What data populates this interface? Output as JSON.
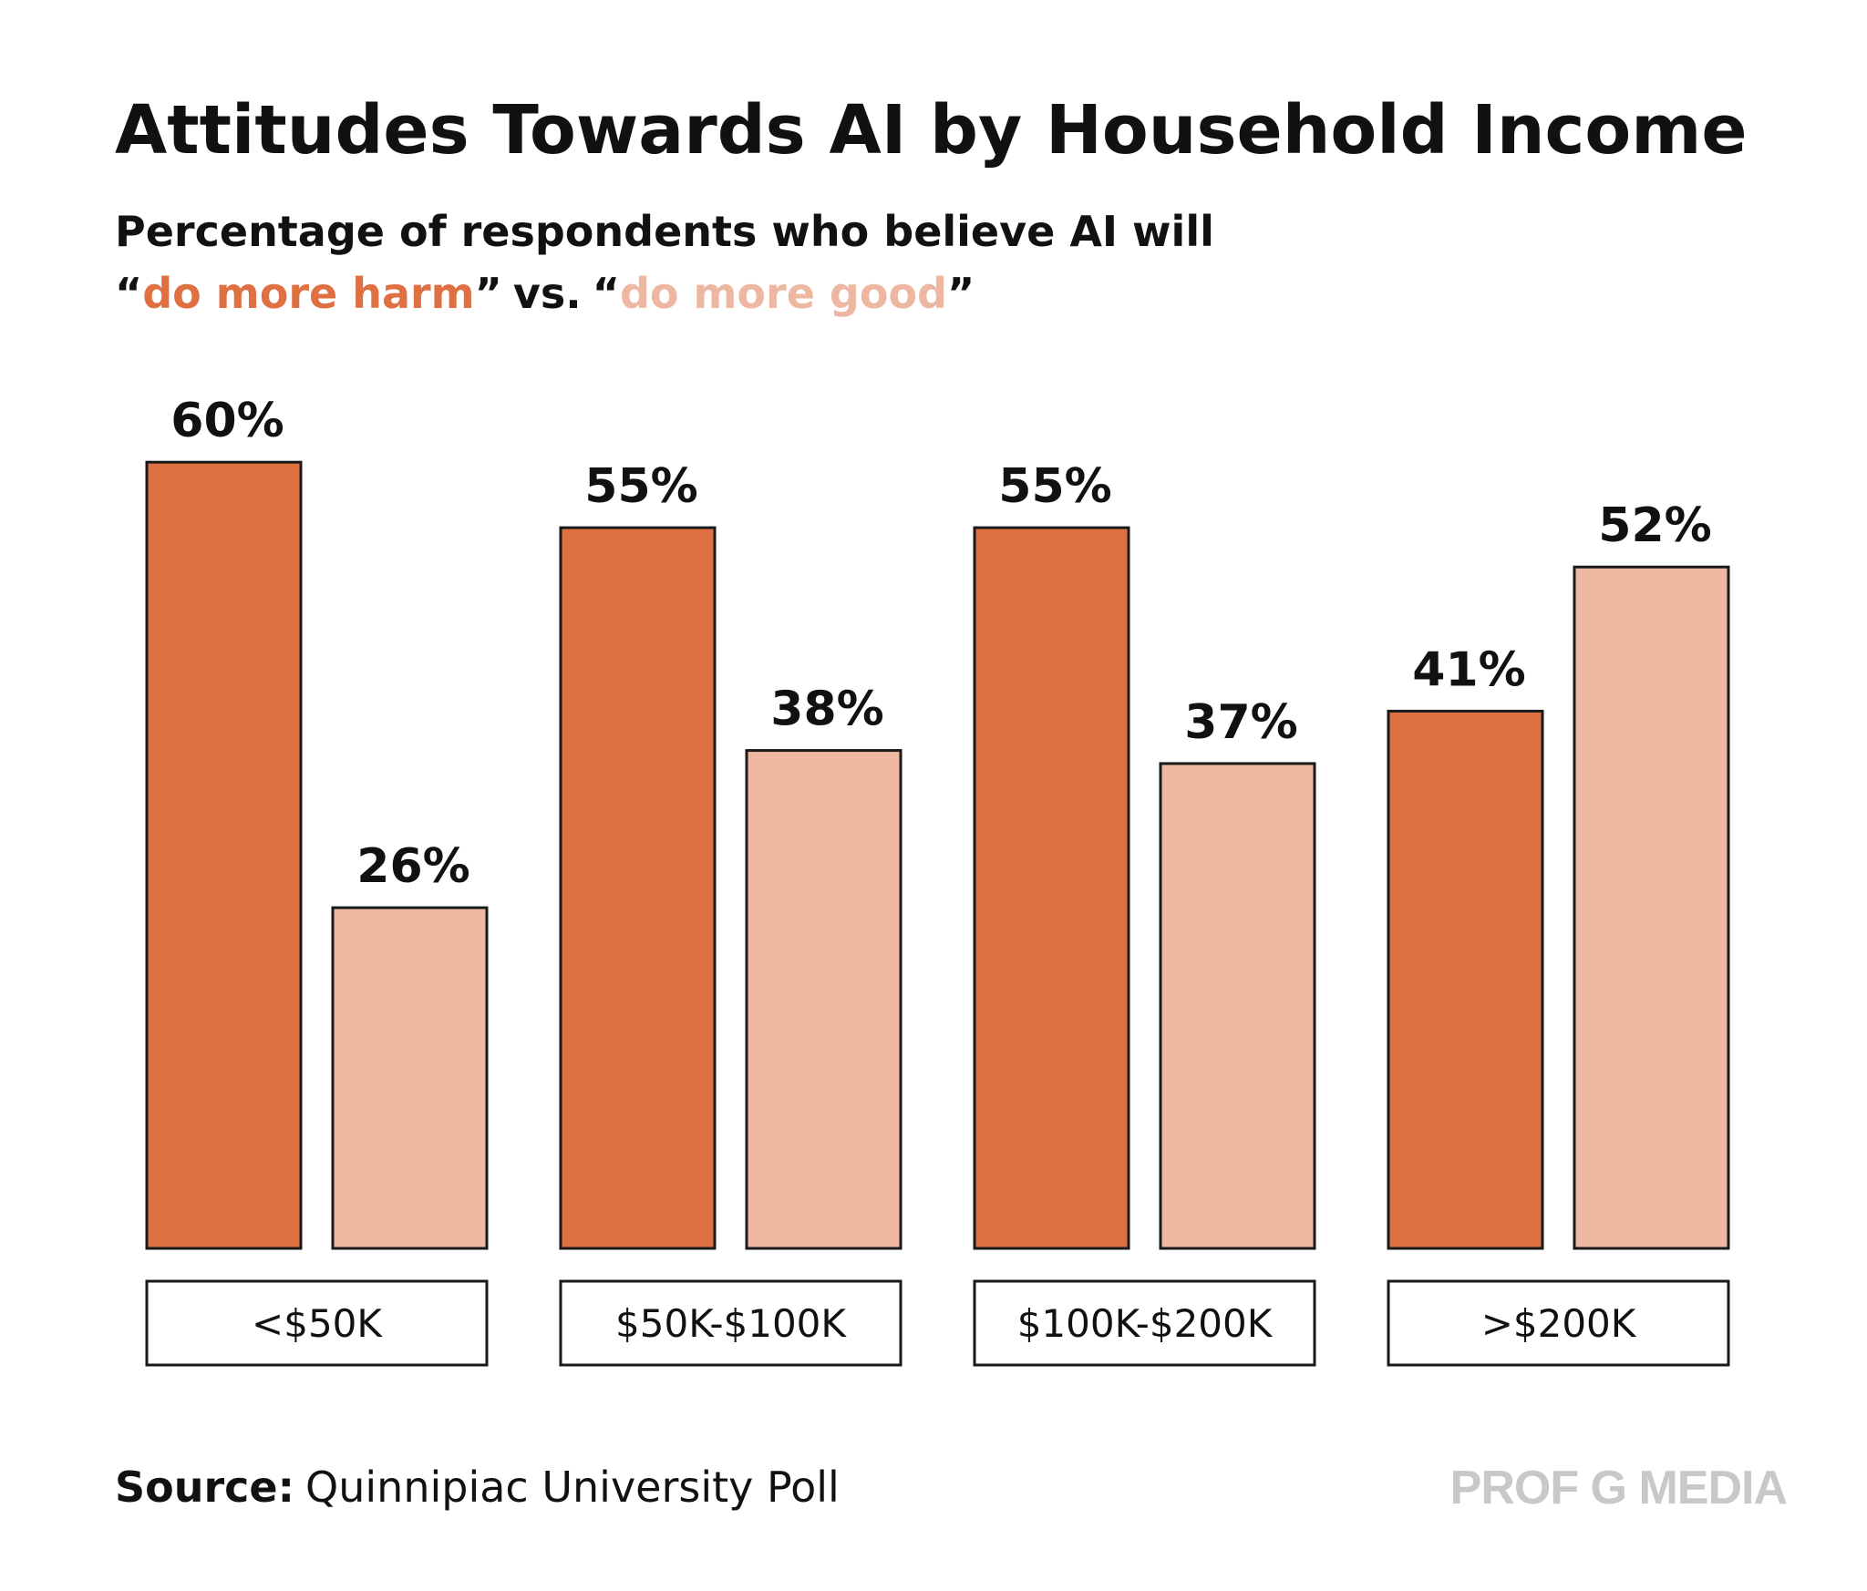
{
  "chart_data": {
    "type": "bar",
    "title": "Attitudes Towards AI by Household Income",
    "subtitle": "Percentage of respondents who believe AI will",
    "legend_format": {
      "open": "“",
      "close": "”",
      "separator": "vs."
    },
    "categories": [
      "<$50K",
      "$50K-$100K",
      "$100K-$200K",
      ">$200K"
    ],
    "series": [
      {
        "name": "do more harm",
        "color": "#df7042",
        "values": [
          60,
          55,
          55,
          41
        ],
        "value_labels": [
          "60%",
          "55%",
          "55%",
          "41%"
        ]
      },
      {
        "name": "do more good",
        "color": "#eeb7a1",
        "values": [
          26,
          38,
          37,
          52
        ],
        "value_labels": [
          "26%",
          "38%",
          "37%",
          "52%"
        ]
      }
    ],
    "source_label": "Source:",
    "source": "Quinnipiac University Poll",
    "brand": "PROF G MEDIA"
  }
}
